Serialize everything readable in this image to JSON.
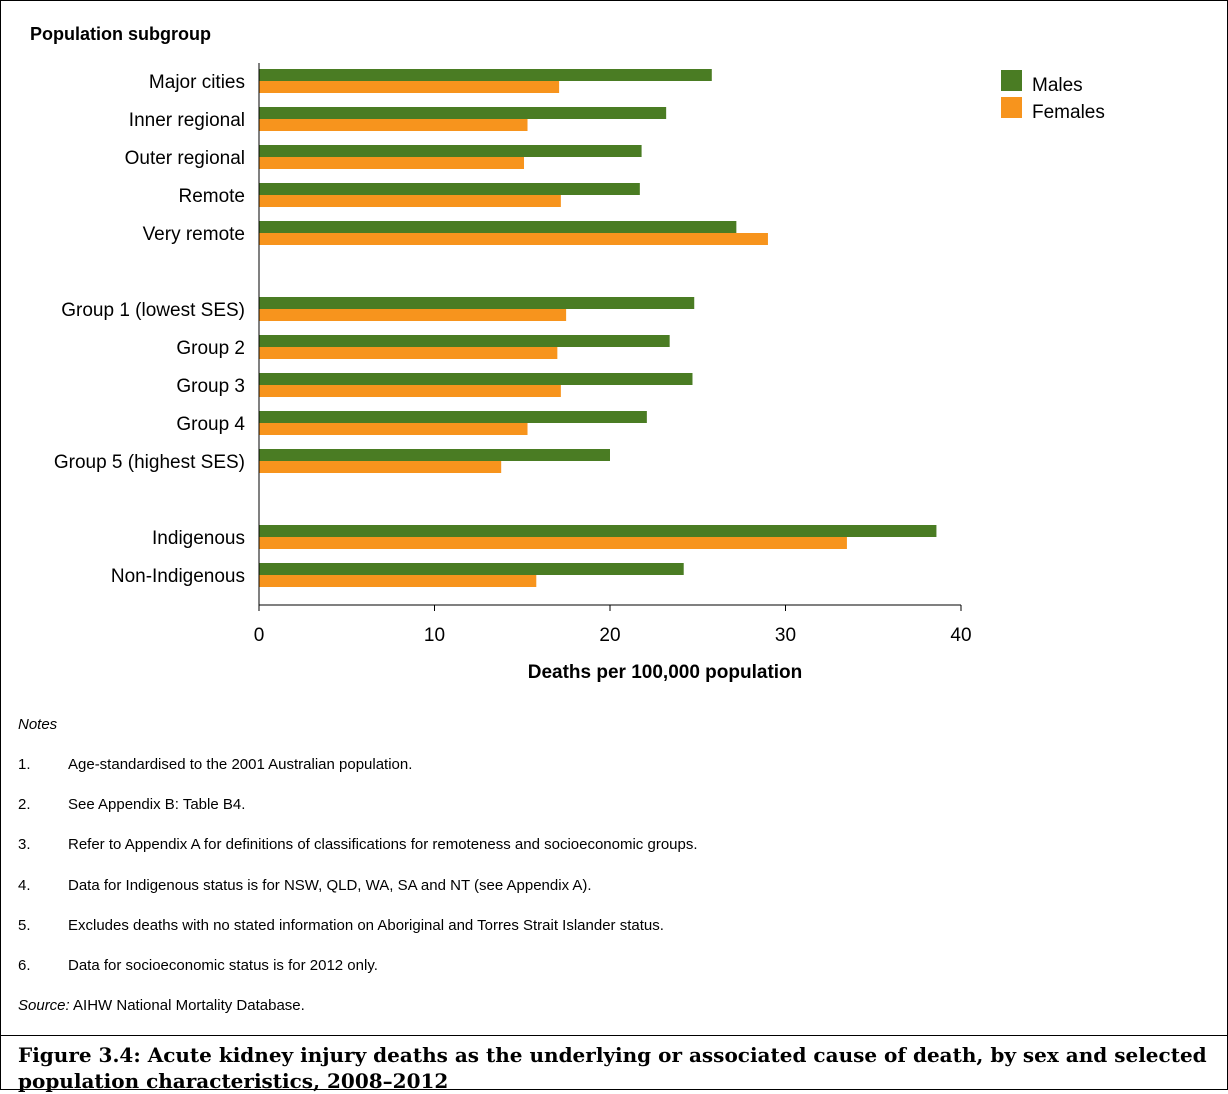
{
  "chart_data": {
    "type": "bar",
    "orientation": "horizontal",
    "yaxis_title": "Population subgroup",
    "xlabel": "Deaths per 100,000 population",
    "xlim": [
      0,
      40
    ],
    "xticks": [
      0,
      10,
      20,
      30,
      40
    ],
    "grid": false,
    "legend_position": "top-right",
    "categories": [
      "Major cities",
      "Inner regional",
      "Outer regional",
      "Remote",
      "Very remote",
      "Group 1 (lowest SES)",
      "Group 2",
      "Group 3",
      "Group 4",
      "Group 5 (highest SES)",
      "Indigenous",
      "Non-Indigenous"
    ],
    "groups": [
      [
        "Major cities",
        "Inner regional",
        "Outer regional",
        "Remote",
        "Very remote"
      ],
      [
        "Group 1 (lowest SES)",
        "Group 2",
        "Group 3",
        "Group 4",
        "Group 5 (highest SES)"
      ],
      [
        "Indigenous",
        "Non-Indigenous"
      ]
    ],
    "series": [
      {
        "name": "Males",
        "color": "#4a7c23",
        "values": [
          25.8,
          23.2,
          21.8,
          21.7,
          27.2,
          24.8,
          23.4,
          24.7,
          22.1,
          20.0,
          38.6,
          24.2
        ]
      },
      {
        "name": "Females",
        "color": "#f7941d",
        "values": [
          17.1,
          15.3,
          15.1,
          17.2,
          29.0,
          17.5,
          17.0,
          17.2,
          15.3,
          13.8,
          33.5,
          15.8
        ]
      }
    ]
  },
  "notes": {
    "heading": "Notes",
    "items": [
      {
        "num": "1.",
        "text": "Age-standardised to the 2001 Australian population."
      },
      {
        "num": "2.",
        "text": "See Appendix B: Table B4."
      },
      {
        "num": "3.",
        "text": "Refer to Appendix A for definitions of classifications for remoteness and socioeconomic groups."
      },
      {
        "num": "4.",
        "text": "Data for Indigenous status is for NSW, QLD, WA, SA and NT (see Appendix A)."
      },
      {
        "num": "5.",
        "text": "Excludes deaths with no stated information on Aboriginal and Torres Strait Islander status."
      },
      {
        "num": "6.",
        "text": "Data for socioeconomic status is for 2012 only."
      }
    ]
  },
  "source": {
    "label": "Source:",
    "text": " AIHW National Mortality Database."
  },
  "caption": "Figure 3.4: Acute kidney injury deaths as the underlying or associated cause of death, by sex and selected population characteristics, 2008–2012"
}
